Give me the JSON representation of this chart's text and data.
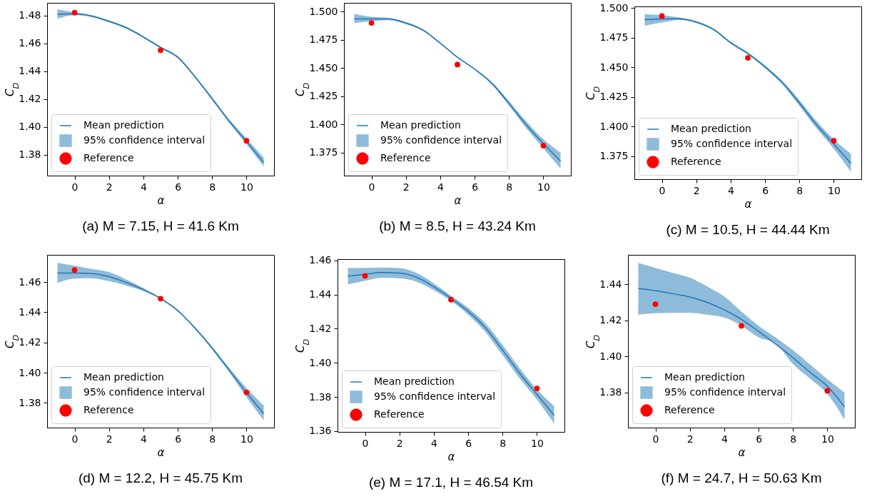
{
  "chart_data": [
    {
      "type": "line",
      "title": "(a) M = 7.15, H = 41.6 Km",
      "xlabel": "α",
      "ylabel": "C$_{D}$",
      "annotations": [
        "95% confidence interval"
      ],
      "x": [
        -1,
        0,
        1,
        2,
        3,
        4,
        5,
        6,
        7,
        8,
        9,
        10,
        11
      ],
      "xlim": [
        -1.6,
        11.6
      ],
      "xticks": [
        0,
        2,
        4,
        6,
        8,
        10
      ],
      "ylim": [
        1.365,
        1.489
      ],
      "yticks": [
        1.38,
        {
          "value": 1.4,
          "label": "1.40"
        },
        1.42,
        1.44,
        1.46,
        1.48
      ],
      "legend": "bottom left",
      "grid": false,
      "series": [
        {
          "name": "Mean prediction",
          "type": "line",
          "color": "#1f77b4",
          "values": [
            1.4808,
            1.4812,
            1.4795,
            1.4758,
            1.4712,
            1.4645,
            1.457,
            1.45,
            1.436,
            1.4202,
            1.404,
            1.3895,
            1.3745
          ],
          "lower": [
            1.4776,
            1.4802,
            1.4788,
            1.4751,
            1.4705,
            1.4638,
            1.4563,
            1.4492,
            1.4352,
            1.4192,
            1.4027,
            1.3875,
            1.3715
          ],
          "upper": [
            1.4844,
            1.4822,
            1.4802,
            1.4765,
            1.4719,
            1.4652,
            1.4577,
            1.4508,
            1.4368,
            1.4212,
            1.4053,
            1.3915,
            1.378
          ]
        },
        {
          "name": "Reference",
          "type": "scatter",
          "color": "#ff0000",
          "x": [
            0,
            5,
            10
          ],
          "values": [
            1.482,
            1.455,
            1.39
          ]
        }
      ]
    },
    {
      "type": "line",
      "title": "(b) M = 8.5, H = 43.24 Km",
      "xlabel": "α",
      "ylabel": "C$_{D}$",
      "annotations": [
        "95% confidence interval"
      ],
      "x": [
        -1,
        0,
        1,
        2,
        3,
        4,
        5,
        6,
        7,
        8,
        9,
        10,
        11
      ],
      "xlim": [
        -1.6,
        11.6
      ],
      "xticks": [
        0,
        2,
        4,
        6,
        8,
        10
      ],
      "ylim": [
        1.3544,
        1.5078
      ],
      "yticks": [
        {
          "value": 1.375,
          "label": "1.375"
        },
        {
          "value": 1.4,
          "label": "1.400"
        },
        {
          "value": 1.425,
          "label": "1.425"
        },
        {
          "value": 1.45,
          "label": "1.450"
        },
        {
          "value": 1.475,
          "label": "1.475"
        },
        {
          "value": 1.5,
          "label": "1.500"
        }
      ],
      "legend": "bottom left",
      "grid": false,
      "series": [
        {
          "name": "Mean prediction",
          "type": "line",
          "color": "#1f77b4",
          "values": [
            1.4935,
            1.4935,
            1.4935,
            1.4899,
            1.4836,
            1.472,
            1.4595,
            1.449,
            1.4364,
            1.4185,
            1.3996,
            1.3828,
            1.3674
          ],
          "lower": [
            1.4899,
            1.4915,
            1.4925,
            1.4889,
            1.4828,
            1.4713,
            1.459,
            1.4484,
            1.4354,
            1.4165,
            1.3966,
            1.3788,
            1.3607
          ],
          "upper": [
            1.4979,
            1.4955,
            1.4945,
            1.4909,
            1.4844,
            1.4727,
            1.46,
            1.4496,
            1.4374,
            1.4205,
            1.4026,
            1.3868,
            1.3748
          ]
        },
        {
          "name": "Reference",
          "type": "scatter",
          "color": "#ff0000",
          "x": [
            0,
            5,
            10
          ],
          "values": [
            1.49,
            1.453,
            1.381
          ]
        }
      ]
    },
    {
      "type": "line",
      "title": "(c) M = 10.5, H = 44.44 Km",
      "xlabel": "α",
      "ylabel": "C$_{D}$",
      "annotations": [
        "95% confidence interval"
      ],
      "x": [
        -1,
        0,
        1,
        2,
        3,
        4,
        5,
        6,
        7,
        8,
        9,
        10,
        11
      ],
      "xlim": [
        -1.6,
        11.6
      ],
      "xticks": [
        0,
        2,
        4,
        6,
        8,
        10
      ],
      "ylim": [
        1.3556,
        1.5014
      ],
      "yticks": [
        {
          "value": 1.375,
          "label": "1.375"
        },
        {
          "value": 1.4,
          "label": "1.400"
        },
        {
          "value": 1.425,
          "label": "1.425"
        },
        {
          "value": 1.45,
          "label": "1.450"
        },
        {
          "value": 1.475,
          "label": "1.475"
        },
        {
          "value": 1.5,
          "label": "1.500"
        }
      ],
      "legend": "bottom left",
      "grid": false,
      "series": [
        {
          "name": "Mean prediction",
          "type": "line",
          "color": "#1f77b4",
          "values": [
            1.4902,
            1.4908,
            1.491,
            1.4882,
            1.482,
            1.4708,
            1.4617,
            1.4504,
            1.4372,
            1.4199,
            1.4015,
            1.3852,
            1.3689
          ],
          "lower": [
            1.4851,
            1.4878,
            1.49,
            1.4874,
            1.4812,
            1.4699,
            1.4607,
            1.4492,
            1.4357,
            1.4174,
            1.3985,
            1.3812,
            1.3617
          ],
          "upper": [
            1.4949,
            1.4938,
            1.492,
            1.489,
            1.4828,
            1.4717,
            1.4627,
            1.4516,
            1.4387,
            1.4224,
            1.4045,
            1.3892,
            1.377
          ]
        },
        {
          "name": "Reference",
          "type": "scatter",
          "color": "#ff0000",
          "x": [
            0,
            5,
            10
          ],
          "values": [
            1.4933,
            1.458,
            1.388
          ]
        }
      ]
    },
    {
      "type": "line",
      "title": "(d) M = 12.2, H = 45.75 Km",
      "xlabel": "α",
      "ylabel": "C$_{D}$",
      "annotations": [
        "95% confidence interval"
      ],
      "x": [
        -1,
        0,
        1,
        2,
        3,
        4,
        5,
        6,
        7,
        8,
        9,
        10,
        11
      ],
      "xlim": [
        -1.6,
        11.6
      ],
      "xticks": [
        0,
        2,
        4,
        6,
        8,
        10
      ],
      "ylim": [
        1.3636,
        1.478
      ],
      "yticks": [
        1.38,
        {
          "value": 1.4,
          "label": "1.40"
        },
        1.42,
        1.44,
        1.46
      ],
      "legend": "bottom left",
      "grid": false,
      "series": [
        {
          "name": "Mean prediction",
          "type": "line",
          "color": "#1f77b4",
          "values": [
            1.466,
            1.466,
            1.4656,
            1.4636,
            1.4597,
            1.455,
            1.4491,
            1.4411,
            1.4295,
            1.4163,
            1.4016,
            1.3868,
            1.3729
          ],
          "lower": [
            1.4594,
            1.4623,
            1.4625,
            1.4606,
            1.4577,
            1.454,
            1.4486,
            1.4405,
            1.4288,
            1.4153,
            1.4001,
            1.3838,
            1.3685
          ],
          "upper": [
            1.4727,
            1.4708,
            1.4687,
            1.4666,
            1.4617,
            1.456,
            1.4496,
            1.4417,
            1.4302,
            1.4173,
            1.4031,
            1.3898,
            1.3783
          ]
        },
        {
          "name": "Reference",
          "type": "scatter",
          "color": "#ff0000",
          "x": [
            0,
            5,
            10
          ],
          "values": [
            1.468,
            1.449,
            1.387
          ]
        }
      ]
    },
    {
      "type": "line",
      "title": "(e) M = 17.1, H = 46.54 Km",
      "xlabel": "α",
      "ylabel": "C$_{D}$",
      "annotations": [
        "95% confidence interval"
      ],
      "x": [
        -1,
        0,
        1,
        2,
        3,
        4,
        5,
        6,
        7,
        8,
        9,
        10,
        11
      ],
      "xlim": [
        -1.6,
        11.6
      ],
      "xticks": [
        0,
        2,
        4,
        6,
        8,
        10
      ],
      "ylim": [
        1.3595,
        1.4608
      ],
      "yticks": [
        1.36,
        1.38,
        {
          "value": 1.4,
          "label": "1.40"
        },
        1.42,
        1.44,
        1.46
      ],
      "legend": "bottom left",
      "grid": false,
      "series": [
        {
          "name": "Mean prediction",
          "type": "line",
          "color": "#1f77b4",
          "values": [
            1.4509,
            1.4519,
            1.4529,
            1.4526,
            1.4501,
            1.4446,
            1.4378,
            1.4302,
            1.4206,
            1.4075,
            1.3938,
            1.3815,
            1.3691
          ],
          "lower": [
            1.446,
            1.4481,
            1.4499,
            1.4496,
            1.4475,
            1.4426,
            1.4363,
            1.4282,
            1.4181,
            1.4045,
            1.3908,
            1.3785,
            1.3643
          ],
          "upper": [
            1.4556,
            1.4557,
            1.4559,
            1.4556,
            1.4527,
            1.4466,
            1.4393,
            1.4322,
            1.4231,
            1.4105,
            1.3968,
            1.3845,
            1.3746
          ]
        },
        {
          "name": "Reference",
          "type": "scatter",
          "color": "#ff0000",
          "x": [
            0,
            5,
            10
          ],
          "values": [
            1.451,
            1.437,
            1.385
          ]
        }
      ]
    },
    {
      "type": "line",
      "title": "(f) M = 24.7, H = 50.63 Km",
      "xlabel": "α",
      "ylabel": "C$_{D}$",
      "annotations": [
        "95% confidence interval"
      ],
      "x": [
        -1,
        0,
        1,
        2,
        3,
        4,
        5,
        6,
        7,
        8,
        9,
        10,
        11
      ],
      "xlim": [
        -1.6,
        11.6
      ],
      "xticks": [
        0,
        2,
        4,
        6,
        8,
        10
      ],
      "ylim": [
        1.3606,
        1.4563
      ],
      "yticks": [
        1.38,
        {
          "value": 1.4,
          "label": "1.40"
        },
        1.42,
        1.44
      ],
      "legend": "bottom left",
      "grid": false,
      "series": [
        {
          "name": "Mean prediction",
          "type": "line",
          "color": "#1f77b4",
          "values": [
            1.4377,
            1.4364,
            1.4348,
            1.433,
            1.43,
            1.4258,
            1.4206,
            1.4139,
            1.4068,
            1.3993,
            1.3912,
            1.3835,
            1.3721
          ],
          "lower": [
            1.4232,
            1.424,
            1.4242,
            1.4242,
            1.4232,
            1.4216,
            1.4171,
            1.4106,
            1.4072,
            1.3958,
            1.3877,
            1.3792,
            1.365
          ],
          "upper": [
            1.4519,
            1.4491,
            1.4463,
            1.4436,
            1.4388,
            1.4333,
            1.4249,
            1.4171,
            1.4104,
            1.4035,
            1.3955,
            1.3874,
            1.38
          ]
        },
        {
          "name": "Reference",
          "type": "scatter",
          "color": "#ff0000",
          "x": [
            0,
            5,
            10
          ],
          "values": [
            1.429,
            1.417,
            1.381
          ]
        }
      ]
    }
  ]
}
